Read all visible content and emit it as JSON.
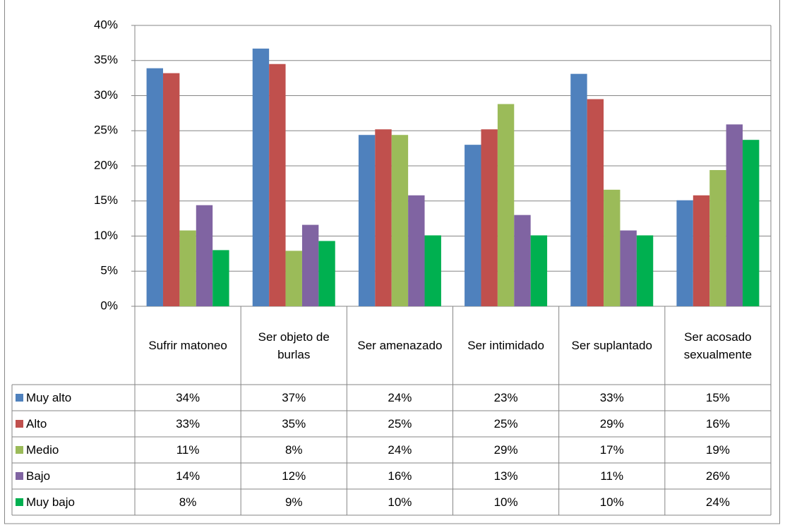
{
  "chart_data": {
    "type": "bar",
    "categories": [
      "Sufrir matoneo",
      "Ser objeto de burlas",
      "Ser amenazado",
      "Ser intimidado",
      "Ser suplantado",
      "Ser acosado sexualmente"
    ],
    "series": [
      {
        "name": "Muy alto",
        "color": "#4f81bd",
        "values": [
          33.9,
          36.7,
          24.4,
          23.0,
          33.1,
          15.1
        ],
        "value_labels": [
          "34%",
          "37%",
          "24%",
          "23%",
          "33%",
          "15%"
        ]
      },
      {
        "name": "Alto",
        "color": "#c0504d",
        "values": [
          33.2,
          34.5,
          25.2,
          25.2,
          29.5,
          15.8
        ],
        "value_labels": [
          "33%",
          "35%",
          "25%",
          "25%",
          "29%",
          "16%"
        ]
      },
      {
        "name": "Medio",
        "color": "#9bbb59",
        "values": [
          10.8,
          7.9,
          24.4,
          28.8,
          16.6,
          19.4
        ],
        "value_labels": [
          "11%",
          "8%",
          "24%",
          "29%",
          "17%",
          "19%"
        ]
      },
      {
        "name": "Bajo",
        "color": "#8064a2",
        "values": [
          14.4,
          11.6,
          15.8,
          13.0,
          10.8,
          25.9
        ],
        "value_labels": [
          "14%",
          "12%",
          "16%",
          "13%",
          "11%",
          "26%"
        ]
      },
      {
        "name": "Muy bajo",
        "color": "#00b050",
        "values": [
          8.0,
          9.3,
          10.1,
          10.1,
          10.1,
          23.7
        ],
        "value_labels": [
          "8%",
          "9%",
          "10%",
          "10%",
          "10%",
          "24%"
        ]
      }
    ],
    "ylim": [
      0,
      40
    ],
    "yticks": [
      {
        "value": 0,
        "label": "0%"
      },
      {
        "value": 5,
        "label": "5%"
      },
      {
        "value": 10,
        "label": "10%"
      },
      {
        "value": 15,
        "label": "15%"
      },
      {
        "value": 20,
        "label": "20%"
      },
      {
        "value": 25,
        "label": "25%"
      },
      {
        "value": 30,
        "label": "30%"
      },
      {
        "value": 35,
        "label": "35%"
      },
      {
        "value": 40,
        "label": "40%"
      }
    ],
    "grid": true
  }
}
